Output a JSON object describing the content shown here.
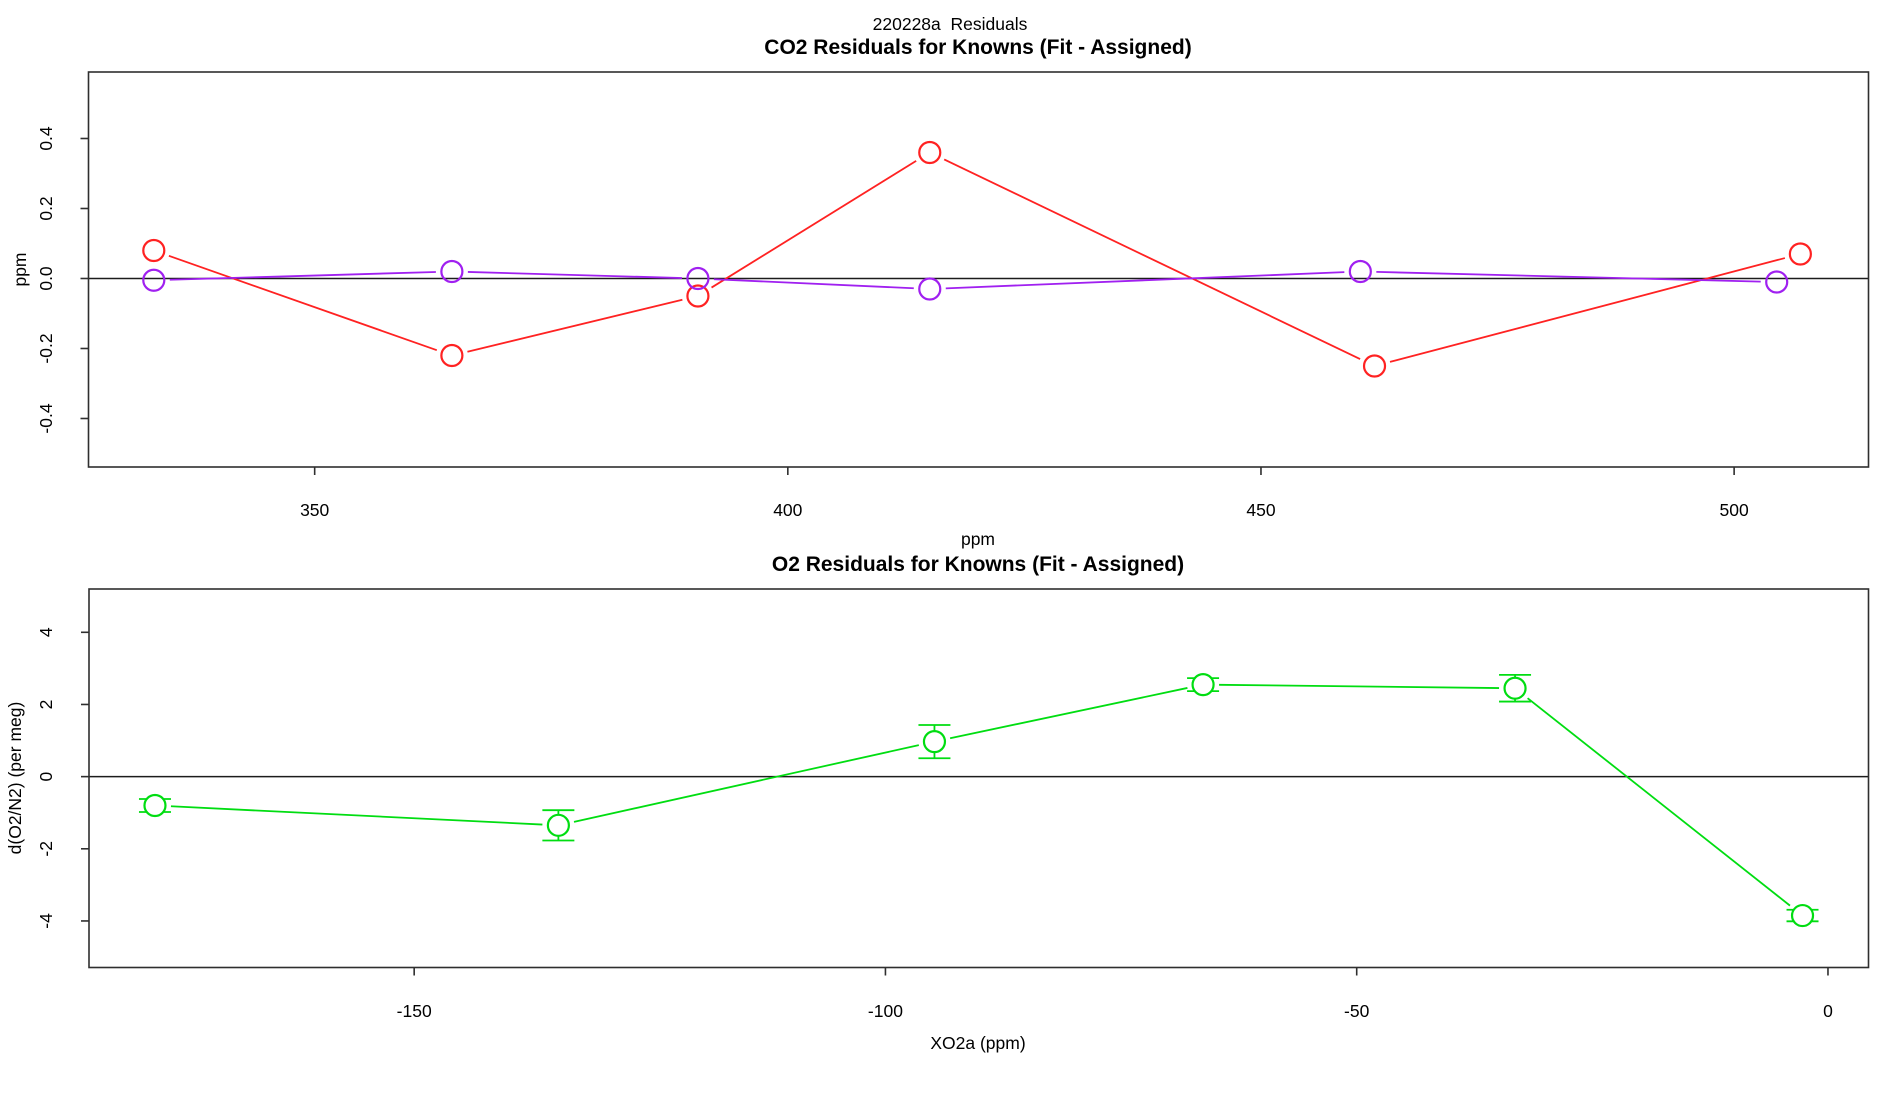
{
  "figure_title": "220228a  Residuals",
  "chart_data": [
    {
      "type": "line",
      "title": "CO2 Residuals for Knowns (Fit - Assigned)",
      "xlabel": "ppm",
      "ylabel": "ppm",
      "xlim": [
        326.1,
        514.2
      ],
      "ylim": [
        -0.5386,
        0.59
      ],
      "xticks": [
        350,
        400,
        450,
        500
      ],
      "xtick_labels": [
        "350",
        "400",
        "450",
        "500"
      ],
      "yticks": [
        0.4,
        0.2,
        0.0,
        -0.2,
        -0.4
      ],
      "ytick_labels": [
        "0.4",
        "0.2",
        "0.0",
        "-0.2",
        "-0.4"
      ],
      "zero_line": true,
      "grid": false,
      "legend": "none",
      "series": [
        {
          "name": "co2-residual-red",
          "color": "#ff2222",
          "marker": "open-circle",
          "x": [
            333,
            364.5,
            390.5,
            415,
            462,
            507
          ],
          "y": [
            0.08,
            -0.22,
            -0.05,
            0.36,
            -0.25,
            0.07
          ]
        },
        {
          "name": "co2-residual-purple",
          "color": "#a020f0",
          "marker": "open-circle",
          "x": [
            333,
            364.5,
            390.5,
            415,
            460.5,
            504.5
          ],
          "y": [
            -0.005,
            0.02,
            0.0,
            -0.03,
            0.02,
            -0.01
          ]
        }
      ]
    },
    {
      "type": "line-errorbar",
      "title": "O2 Residuals for Knowns (Fit - Assigned)",
      "xlabel": "XO2a (ppm)",
      "ylabel": "d(O2/N2) (per meg)",
      "xlim": [
        -184.5,
        4.3
      ],
      "ylim": [
        -5.29,
        5.2
      ],
      "xticks": [
        -150,
        -100,
        -50,
        0
      ],
      "xtick_labels": [
        "-150",
        "-100",
        "-50",
        "0"
      ],
      "yticks": [
        4,
        2,
        0,
        -2,
        -4
      ],
      "ytick_labels": [
        "4",
        "2",
        "0",
        "-2",
        "-4"
      ],
      "zero_line": true,
      "grid": false,
      "legend": "none",
      "series": [
        {
          "name": "o2-residual-green",
          "color": "#00dd11",
          "marker": "open-circle",
          "x": [
            -177.5,
            -134.7,
            -94.8,
            -66.3,
            -33.2,
            -2.7
          ],
          "y": [
            -0.8,
            -1.35,
            0.97,
            2.55,
            2.45,
            -3.85
          ],
          "yerr": [
            0.18,
            0.42,
            0.46,
            0.18,
            0.37,
            0.16
          ]
        }
      ]
    }
  ]
}
